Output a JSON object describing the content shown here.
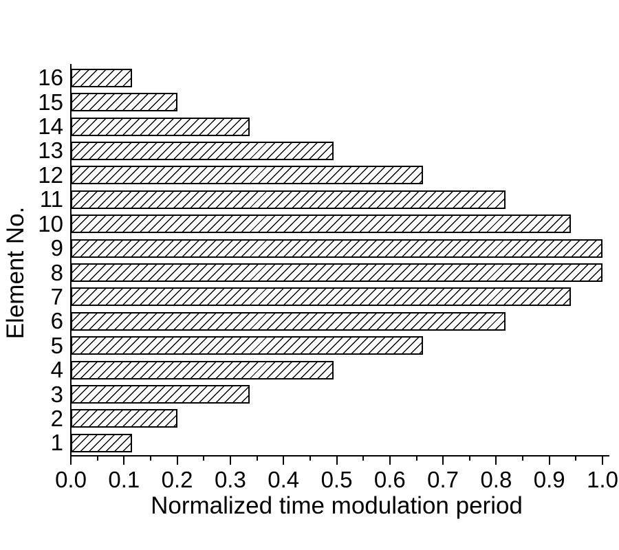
{
  "figure": {
    "background_color": "#ffffff",
    "ink_color": "#000000"
  },
  "chart_data": {
    "type": "bar",
    "orientation": "horizontal",
    "title": "",
    "xlabel": "Normalized time modulation period",
    "ylabel": "Element No.",
    "categories": [
      "1",
      "2",
      "3",
      "4",
      "5",
      "6",
      "7",
      "8",
      "9",
      "10",
      "11",
      "12",
      "13",
      "14",
      "15",
      "16"
    ],
    "values": [
      0.115,
      0.2,
      0.336,
      0.494,
      0.662,
      0.818,
      0.94,
      1.0,
      1.0,
      0.94,
      0.818,
      0.662,
      0.494,
      0.336,
      0.2,
      0.115
    ],
    "xlim": [
      0.0,
      1.0
    ],
    "x_tick_labels": [
      "0.0",
      "0.1",
      "0.2",
      "0.3",
      "0.4",
      "0.5",
      "0.6",
      "0.7",
      "0.8",
      "0.9",
      "1.0"
    ],
    "x_minor_tick_step": 0.05,
    "grid": false,
    "legend": null,
    "bar_style": {
      "fill": "#ffffff",
      "hatch": "forward-diagonal",
      "border_color": "#000000"
    }
  },
  "layout_hints": {
    "y_axis_ticks_visible": false,
    "spines": [
      "left",
      "bottom"
    ]
  }
}
